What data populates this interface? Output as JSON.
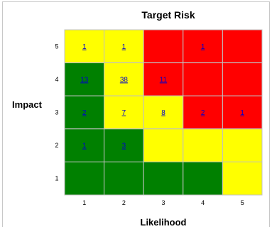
{
  "chart_data": {
    "type": "heatmap",
    "title": "Target Risk",
    "xlabel": "Likelihood",
    "ylabel": "Impact",
    "x_ticks": [
      "1",
      "2",
      "3",
      "4",
      "5"
    ],
    "y_ticks": [
      "1",
      "2",
      "3",
      "4",
      "5"
    ],
    "colors": {
      "G": "#008000",
      "Y": "#ffff00",
      "R": "#ff0000"
    },
    "cell_colors": [
      [
        "Y",
        "Y",
        "R",
        "R",
        "R"
      ],
      [
        "G",
        "Y",
        "R",
        "R",
        "R"
      ],
      [
        "G",
        "Y",
        "Y",
        "R",
        "R"
      ],
      [
        "G",
        "G",
        "Y",
        "Y",
        "Y"
      ],
      [
        "G",
        "G",
        "G",
        "G",
        "Y"
      ]
    ],
    "cell_values": [
      [
        "1",
        "1",
        "",
        "1",
        ""
      ],
      [
        "13",
        "38",
        "11",
        "",
        ""
      ],
      [
        "2",
        "7",
        "8",
        "2",
        "1"
      ],
      [
        "1",
        "3",
        "",
        "",
        ""
      ],
      [
        "",
        "",
        "",
        "",
        ""
      ]
    ]
  }
}
